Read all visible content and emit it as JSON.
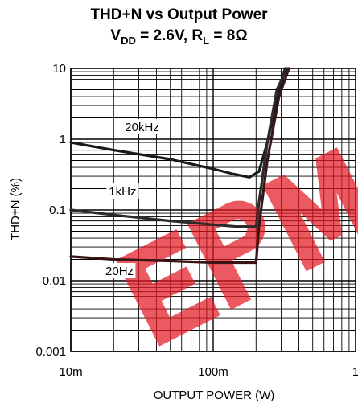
{
  "title": {
    "line1": "THD+N vs Output Power",
    "vdd_label": "V",
    "vdd_sub": "DD",
    "vdd_value": " = 2.6V, R",
    "rl_sub": "L",
    "rl_value": " = 8Ω"
  },
  "watermark": {
    "text": "EPM",
    "color": "#e31b23"
  },
  "chart_data": {
    "type": "line",
    "title": "THD+N vs Output Power",
    "subtitle": "VDD = 2.6V, RL = 8Ω",
    "xlabel": "OUTPUT POWER (W)",
    "ylabel": "THD+N (%)",
    "xscale": "log",
    "yscale": "log",
    "xlim": [
      0.01,
      1
    ],
    "ylim": [
      0.001,
      10
    ],
    "xticks": [
      {
        "v": 0.01,
        "label": "10m"
      },
      {
        "v": 0.1,
        "label": "100m"
      },
      {
        "v": 1,
        "label": "1"
      }
    ],
    "yticks": [
      {
        "v": 0.001,
        "label": "0.001"
      },
      {
        "v": 0.01,
        "label": "0.01"
      },
      {
        "v": 0.1,
        "label": "0.1"
      },
      {
        "v": 1,
        "label": "1"
      },
      {
        "v": 10,
        "label": "10"
      }
    ],
    "grid": true,
    "series": [
      {
        "name": "20kHz",
        "color": "#1a1a1a",
        "x": [
          0.01,
          0.02,
          0.05,
          0.1,
          0.14,
          0.18,
          0.21,
          0.24,
          0.28,
          0.32
        ],
        "y": [
          0.9,
          0.7,
          0.52,
          0.38,
          0.32,
          0.29,
          0.35,
          0.9,
          3.5,
          10
        ]
      },
      {
        "name": "1kHz",
        "color": "#2b2b2b",
        "x": [
          0.01,
          0.02,
          0.05,
          0.1,
          0.15,
          0.2,
          0.21,
          0.24,
          0.28,
          0.33
        ],
        "y": [
          0.1,
          0.085,
          0.07,
          0.062,
          0.058,
          0.058,
          0.13,
          0.9,
          5,
          10
        ]
      },
      {
        "name": "20Hz",
        "color": "#3a1414",
        "x": [
          0.01,
          0.02,
          0.05,
          0.1,
          0.15,
          0.2,
          0.21,
          0.24,
          0.29,
          0.34
        ],
        "y": [
          0.022,
          0.02,
          0.019,
          0.018,
          0.018,
          0.018,
          0.06,
          0.5,
          4,
          10
        ]
      }
    ],
    "series_labels": [
      {
        "text": "20kHz",
        "x": 0.024,
        "y": 1.3
      },
      {
        "text": "1kHz",
        "x": 0.0185,
        "y": 0.16
      },
      {
        "text": "20Hz",
        "x": 0.0175,
        "y": 0.012
      }
    ]
  }
}
